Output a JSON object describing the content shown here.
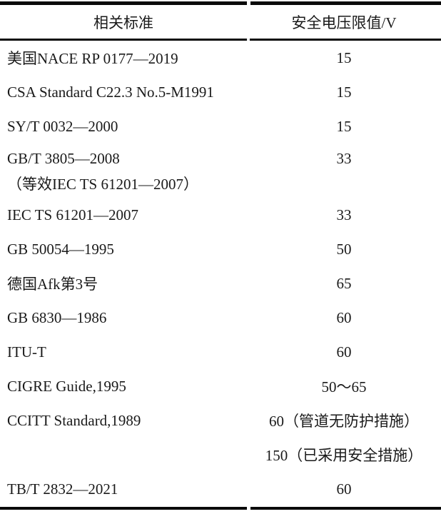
{
  "table": {
    "columns": [
      "相关标准",
      "安全电压限值/V"
    ],
    "rows": [
      {
        "standard": "美国NACE RP 0177—2019",
        "limit": "15"
      },
      {
        "standard": "CSA Standard C22.3 No.5-M1991",
        "limit": "15"
      },
      {
        "standard": "SY/T 0032—2000",
        "limit": "15"
      },
      {
        "standard": "GB/T 3805—2008",
        "standard_line2": "（等效IEC TS 61201—2007）",
        "limit": "33"
      },
      {
        "standard": "IEC TS 61201—2007",
        "limit": "33"
      },
      {
        "standard": "GB 50054—1995",
        "limit": "50"
      },
      {
        "standard": "德国Afk第3号",
        "limit": "65"
      },
      {
        "standard": "GB 6830—1986",
        "limit": "60"
      },
      {
        "standard": "ITU-T",
        "limit": "60"
      },
      {
        "standard": "CIGRE Guide,1995",
        "limit": "50～65"
      },
      {
        "standard": "CCITT Standard,1989",
        "limit": "60（管道无防护措施）",
        "limit_line2": "150（已采用安全措施）"
      },
      {
        "standard": "TB/T 2832—2021",
        "limit": "60"
      }
    ]
  }
}
